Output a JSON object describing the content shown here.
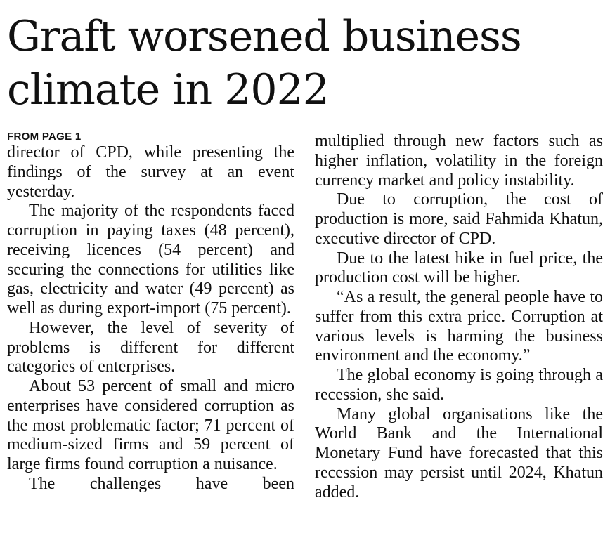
{
  "headline": {
    "line1": "Graft worsened business",
    "line2": "climate in 2022"
  },
  "kicker": "FROM PAGE 1",
  "left_column": [
    "director of CPD, while presenting the findings of the survey at an event yesterday.",
    "The majority of the respondents faced corruption in paying taxes (48 percent), receiving licences (54 percent) and securing the connections for utilities like gas, electricity and water (49 percent) as well as during export-import (75 percent).",
    "However, the level of severity of problems is different for different categories of enterprises.",
    "About 53 percent of small and micro enterprises have considered corruption as the most problematic factor; 71 percent of medium-sized firms and 59 percent of large firms found corruption a nuisance.",
    "The challenges have been"
  ],
  "right_column": [
    "multiplied through new factors such as higher inflation, volatility in the foreign currency market and policy instability.",
    "Due to corruption, the cost of production is more, said Fahmida Khatun, executive director of CPD.",
    "Due to the latest hike in fuel price, the production cost will be higher.",
    "“As a result, the general people have to suffer from this extra price. Corruption at various levels is harming the business environment and the economy.”",
    "The global economy is going through a recession, she said.",
    "Many global organisations like the World Bank and the International Monetary Fund have forecasted that this recession may persist until 2024, Khatun added."
  ]
}
